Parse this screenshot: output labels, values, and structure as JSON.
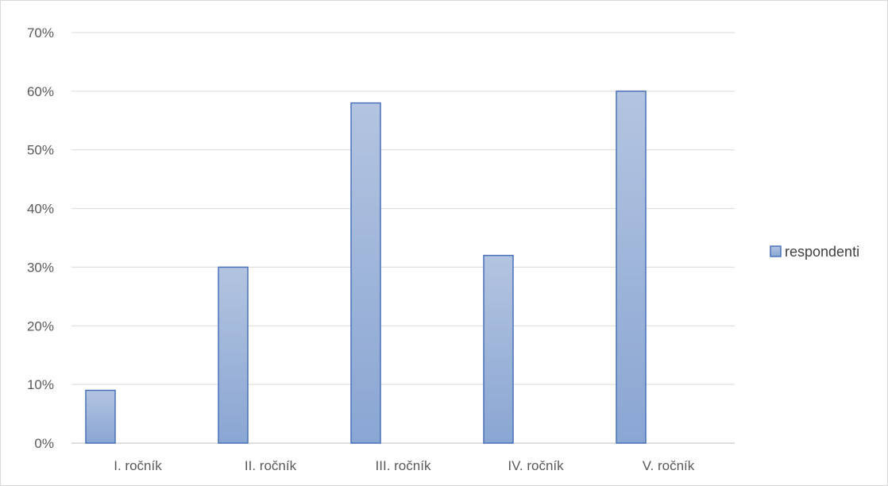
{
  "chart_data": {
    "type": "bar",
    "categories": [
      "I. ročník",
      "II. ročník",
      "III. ročník",
      "IV. ročník",
      "V. ročník"
    ],
    "series": [
      {
        "name": "respondenti",
        "values": [
          9,
          30,
          58,
          32,
          60
        ]
      }
    ],
    "ylim": [
      0,
      70
    ],
    "yticks": [
      "0%",
      "10%",
      "20%",
      "30%",
      "40%",
      "50%",
      "60%",
      "70%"
    ],
    "y_unit": "%",
    "grid": true,
    "legend_position": "right",
    "colors": {
      "bar_top": "#b3c4e0",
      "bar_bottom": "#8aa6d3",
      "bar_stroke": "#4a72b8",
      "grid": "#d9d9d9",
      "axis": "#bfbfbf"
    }
  }
}
